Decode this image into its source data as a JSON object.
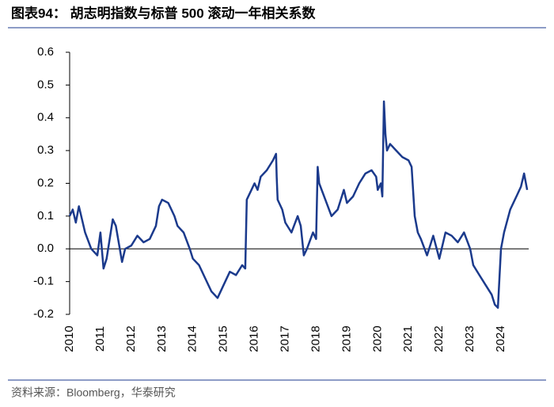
{
  "chart_data": {
    "type": "line",
    "title": "图表94： 胡志明指数与标普 500 滚动一年相关系数",
    "source": "资料来源：Bloomberg，华泰研究",
    "x": [
      2010.0,
      2010.1,
      2010.2,
      2010.3,
      2010.4,
      2010.5,
      2010.7,
      2010.9,
      2011.0,
      2011.1,
      2011.2,
      2011.4,
      2011.5,
      2011.7,
      2011.8,
      2012.0,
      2012.2,
      2012.4,
      2012.6,
      2012.8,
      2012.9,
      2013.0,
      2013.2,
      2013.4,
      2013.5,
      2013.7,
      2013.9,
      2014.0,
      2014.2,
      2014.4,
      2014.6,
      2014.8,
      2015.0,
      2015.2,
      2015.4,
      2015.6,
      2015.7,
      2015.75,
      2015.9,
      2016.0,
      2016.1,
      2016.2,
      2016.4,
      2016.6,
      2016.7,
      2016.72,
      2016.75,
      2016.9,
      2017.0,
      2017.2,
      2017.4,
      2017.5,
      2017.6,
      2017.7,
      2017.9,
      2018.0,
      2018.05,
      2018.1,
      2018.3,
      2018.5,
      2018.7,
      2018.9,
      2019.0,
      2019.2,
      2019.4,
      2019.6,
      2019.8,
      2019.95,
      2020.0,
      2020.1,
      2020.15,
      2020.2,
      2020.25,
      2020.3,
      2020.4,
      2020.6,
      2020.8,
      2021.0,
      2021.1,
      2021.2,
      2021.3,
      2021.4,
      2021.6,
      2021.8,
      2022.0,
      2022.2,
      2022.4,
      2022.6,
      2022.8,
      2023.0,
      2023.1,
      2023.3,
      2023.5,
      2023.7,
      2023.8,
      2023.9,
      2024.0,
      2024.1,
      2024.3,
      2024.5,
      2024.65,
      2024.75,
      2024.85
    ],
    "series": [
      {
        "name": "相关系数",
        "color": "#1b3a8c",
        "values": [
          0.1,
          0.12,
          0.08,
          0.13,
          0.09,
          0.05,
          0.0,
          -0.02,
          0.05,
          -0.06,
          -0.03,
          0.09,
          0.07,
          -0.04,
          0.0,
          0.01,
          0.04,
          0.02,
          0.03,
          0.07,
          0.13,
          0.15,
          0.14,
          0.1,
          0.07,
          0.05,
          0.0,
          -0.03,
          -0.05,
          -0.09,
          -0.13,
          -0.15,
          -0.11,
          -0.07,
          -0.08,
          -0.05,
          -0.06,
          0.15,
          0.18,
          0.2,
          0.18,
          0.22,
          0.24,
          0.27,
          0.29,
          0.22,
          0.15,
          0.12,
          0.08,
          0.05,
          0.1,
          0.07,
          -0.02,
          0.0,
          0.05,
          0.03,
          0.25,
          0.2,
          0.15,
          0.1,
          0.12,
          0.18,
          0.14,
          0.16,
          0.2,
          0.23,
          0.24,
          0.22,
          0.18,
          0.2,
          0.16,
          0.45,
          0.35,
          0.3,
          0.32,
          0.3,
          0.28,
          0.27,
          0.25,
          0.1,
          0.05,
          0.03,
          -0.02,
          0.04,
          -0.03,
          0.05,
          0.04,
          0.02,
          0.05,
          0.0,
          -0.05,
          -0.08,
          -0.11,
          -0.14,
          -0.17,
          -0.18,
          0.0,
          0.05,
          0.12,
          0.16,
          0.19,
          0.23,
          0.18
        ]
      }
    ],
    "xlim": [
      2010,
      2024.9
    ],
    "xticks": [
      2010,
      2011,
      2012,
      2013,
      2014,
      2015,
      2016,
      2017,
      2018,
      2019,
      2020,
      2021,
      2022,
      2023,
      2024
    ],
    "ylim": [
      -0.2,
      0.6
    ],
    "yticks": [
      0.6,
      0.5,
      0.4,
      0.3,
      0.2,
      0.1,
      {
        "value": 0,
        "label": "0.0"
      },
      -0.1,
      -0.2
    ]
  }
}
